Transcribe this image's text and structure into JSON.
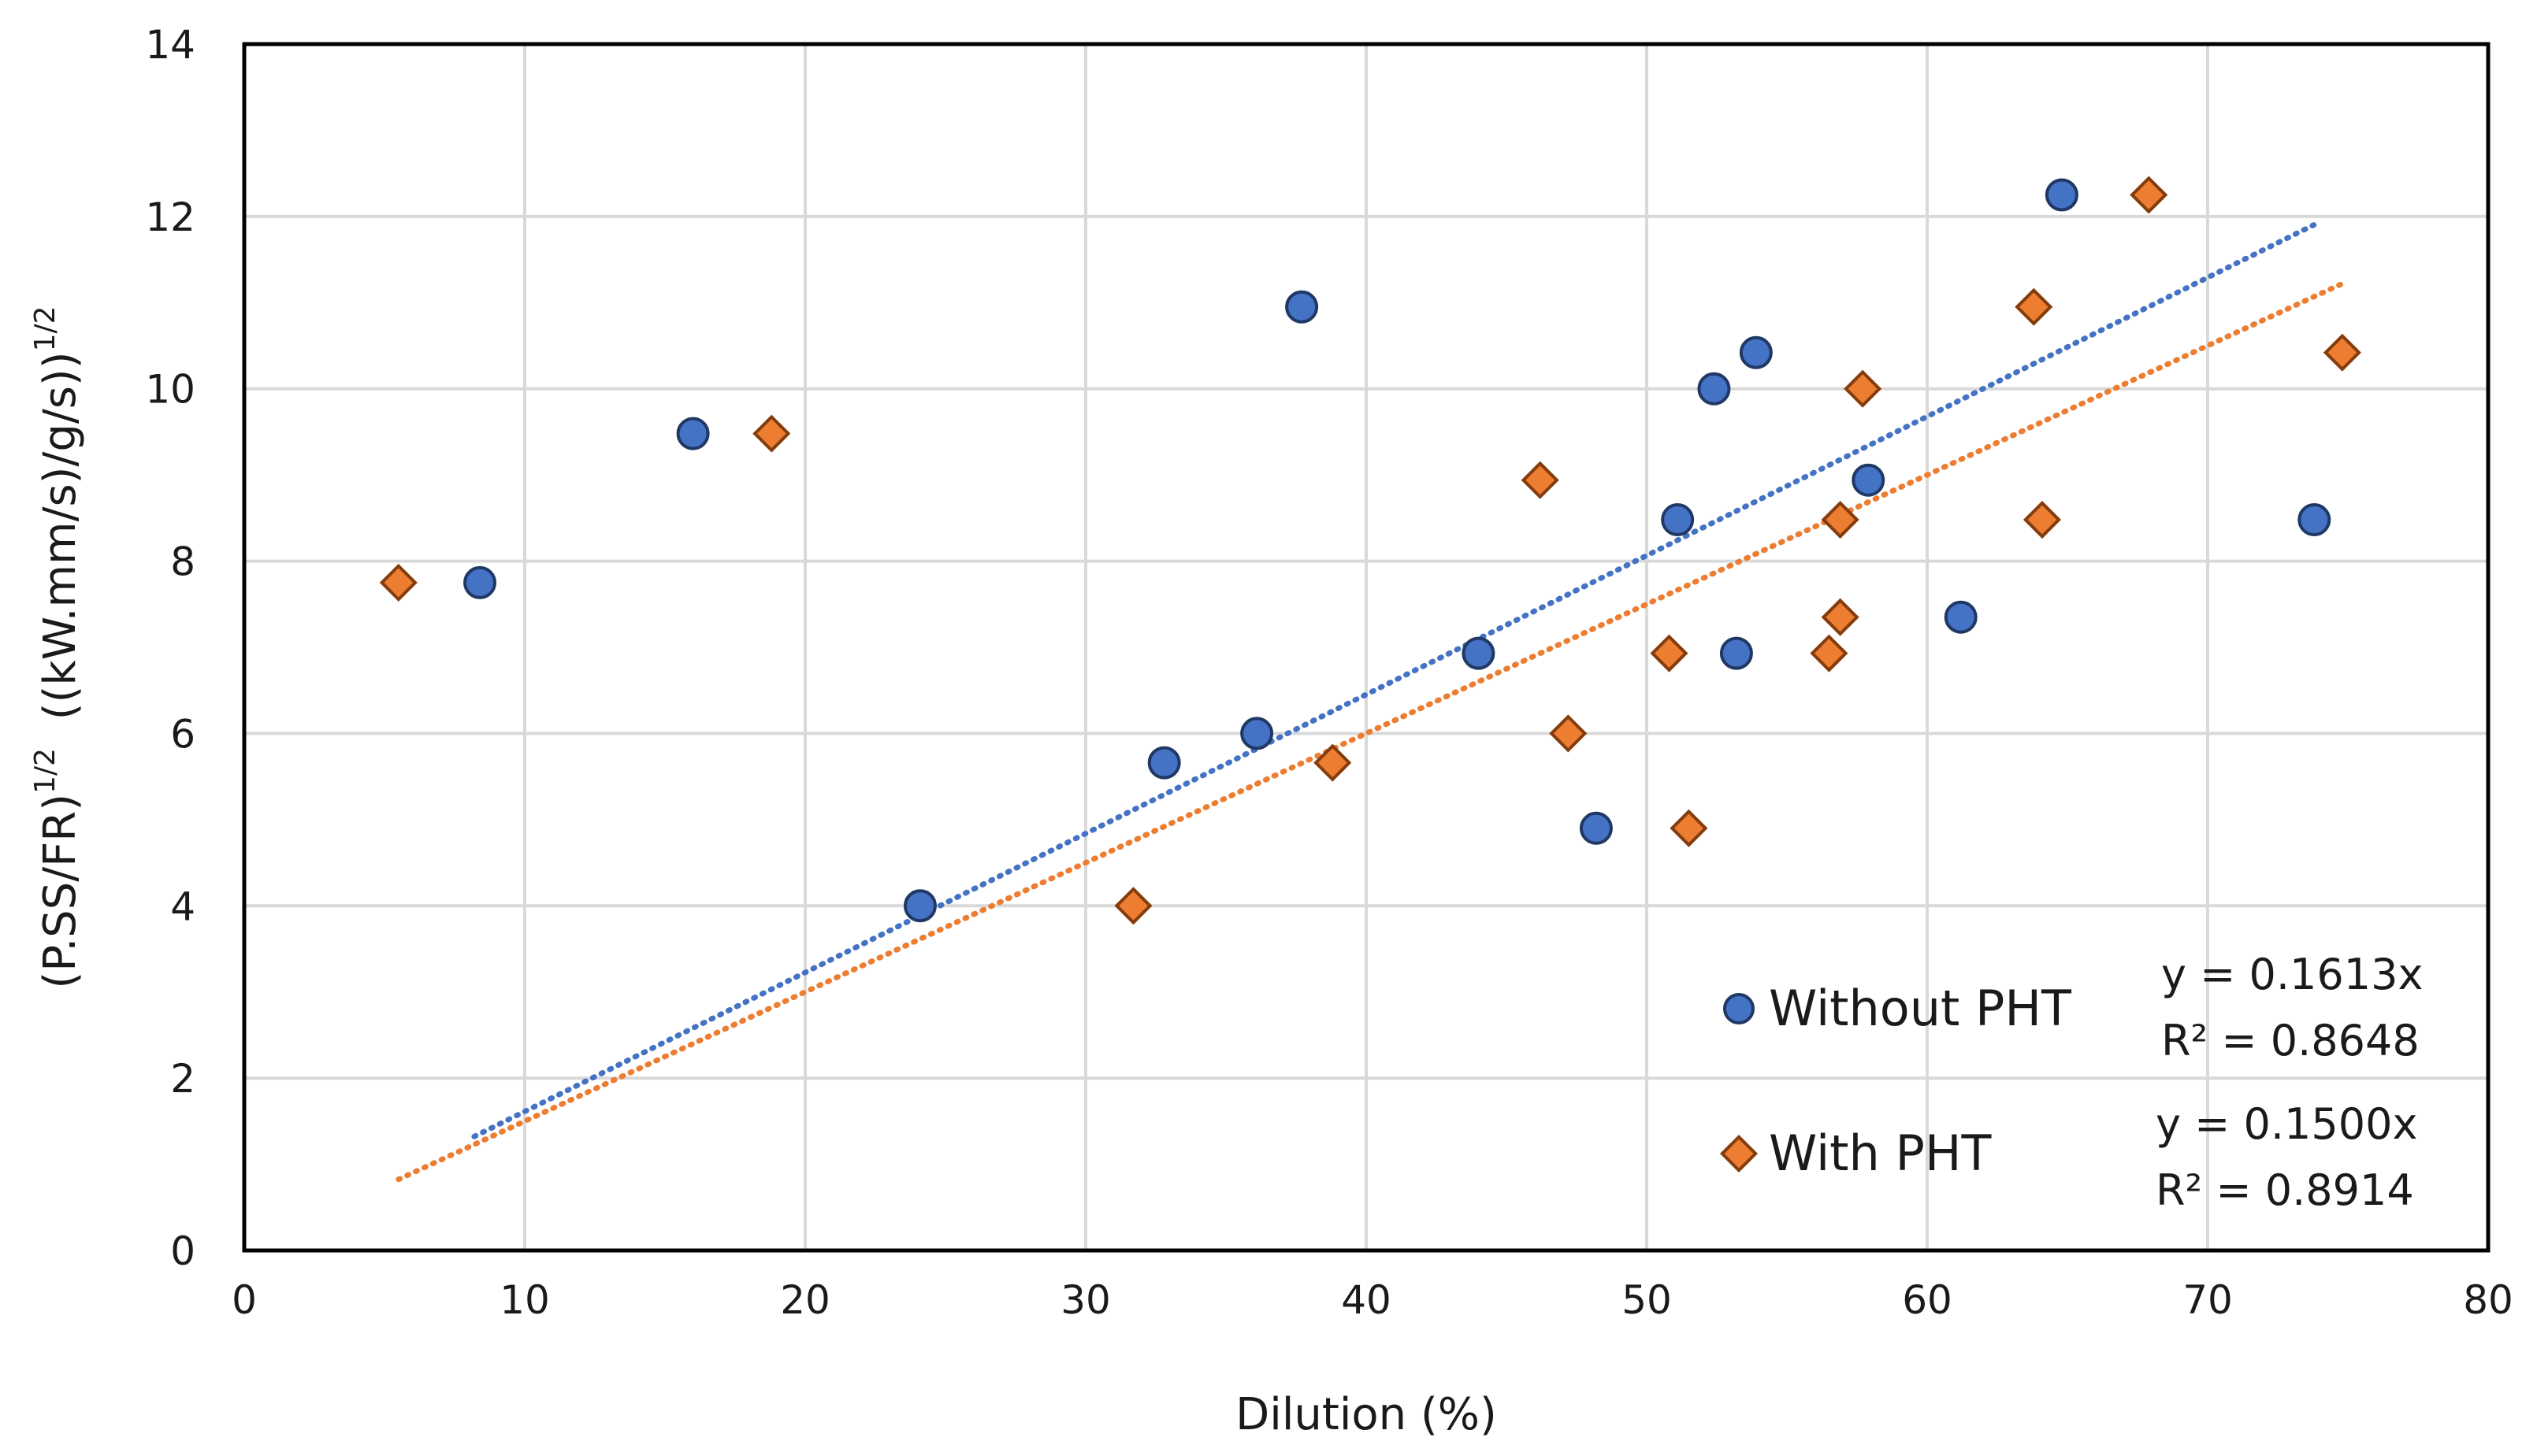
{
  "chart_data": {
    "type": "scatter",
    "title": "",
    "xlabel": "Dilution (%)",
    "ylabel": {
      "base": "(P.SS/FR)",
      "exp1": "1/2",
      "mid": "  ((kW.mm/s)/g/s))",
      "exp2": "1/2"
    },
    "xlim": [
      0,
      80
    ],
    "ylim": [
      0,
      14
    ],
    "xticks": [
      0,
      10,
      20,
      30,
      40,
      50,
      60,
      70,
      80
    ],
    "yticks": [
      0,
      2,
      4,
      6,
      8,
      10,
      12,
      14
    ],
    "grid": true,
    "legend_position": "bottom-right",
    "series": [
      {
        "name": "Without PHT",
        "marker": "circle",
        "color": "#4472C4",
        "edge_color": "#1F3864",
        "points": [
          [
            8.4,
            7.75
          ],
          [
            16.0,
            9.48
          ],
          [
            24.1,
            4.0
          ],
          [
            32.8,
            5.66
          ],
          [
            36.1,
            6.0
          ],
          [
            37.7,
            10.95
          ],
          [
            44.0,
            6.93
          ],
          [
            48.2,
            4.9
          ],
          [
            51.1,
            8.48
          ],
          [
            52.4,
            10.0
          ],
          [
            53.2,
            6.93
          ],
          [
            53.9,
            10.42
          ],
          [
            57.9,
            8.94
          ],
          [
            61.2,
            7.35
          ],
          [
            64.8,
            12.25
          ],
          [
            73.8,
            8.48
          ]
        ],
        "trendline": {
          "x": [
            8.2,
            73.8
          ],
          "equation": "y = 0.1613x",
          "r2": "R² = 0.8648",
          "color": "#4472C4",
          "slope": 0.1613
        }
      },
      {
        "name": "With PHT",
        "marker": "diamond",
        "color": "#ED7D31",
        "edge_color": "#843C0C",
        "points": [
          [
            5.5,
            7.75
          ],
          [
            18.8,
            9.48
          ],
          [
            31.7,
            4.0
          ],
          [
            38.8,
            5.66
          ],
          [
            46.2,
            8.94
          ],
          [
            47.2,
            6.0
          ],
          [
            50.8,
            6.93
          ],
          [
            51.5,
            4.9
          ],
          [
            56.5,
            6.93
          ],
          [
            56.9,
            7.35
          ],
          [
            56.9,
            8.48
          ],
          [
            57.7,
            10.0
          ],
          [
            63.8,
            10.95
          ],
          [
            64.1,
            8.48
          ],
          [
            67.9,
            12.25
          ],
          [
            74.8,
            10.42
          ]
        ],
        "trendline": {
          "x": [
            5.5,
            74.8
          ],
          "equation": "y = 0.1500x",
          "r2": "R² = 0.8914",
          "color": "#ED7D31",
          "slope": 0.15
        }
      }
    ]
  }
}
